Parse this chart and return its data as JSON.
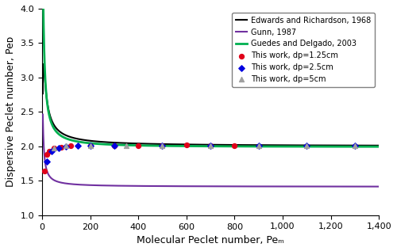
{
  "title": "",
  "xlabel": "Molecular Peclet number, Peₘ",
  "ylabel": "Dispersive Peclet number, Peᴅ",
  "xlim": [
    0,
    1400
  ],
  "ylim": [
    1.0,
    4.0
  ],
  "xticks": [
    0,
    200,
    400,
    600,
    800,
    1000,
    1200,
    1400
  ],
  "yticks": [
    1.0,
    1.5,
    2.0,
    2.5,
    3.0,
    3.5,
    4.0
  ],
  "legend_entries": [
    "This work, dp=1.25cm",
    "This work, dp=2.5cm",
    "This work, dp=5cm",
    "Edwards and Richardson, 1968",
    "Gunn, 1987",
    "Guedes and Delgado, 2003"
  ],
  "colors": {
    "work1": "#e0001a",
    "work2": "#0000e0",
    "work3": "#a0a0a0",
    "edwards": "#000000",
    "gunn": "#7030a0",
    "guedes": "#00b050"
  },
  "scatter_dp1": {
    "pe_m": [
      10,
      20,
      30,
      50,
      80,
      120,
      200,
      300,
      400,
      500,
      600,
      700,
      800
    ],
    "pe_d": [
      1.64,
      1.88,
      1.93,
      1.97,
      1.99,
      2.01,
      2.01,
      2.01,
      2.01,
      2.01,
      2.02,
      2.01,
      2.01
    ]
  },
  "scatter_dp2": {
    "pe_m": [
      20,
      40,
      70,
      100,
      150,
      200,
      300,
      500,
      700,
      900,
      1100,
      1300
    ],
    "pe_d": [
      1.78,
      1.93,
      1.98,
      2.0,
      2.01,
      2.01,
      2.01,
      2.01,
      2.01,
      2.01,
      2.01,
      2.01
    ]
  },
  "scatter_dp3": {
    "pe_m": [
      50,
      100,
      200,
      350,
      500,
      700,
      900,
      1100,
      1300
    ],
    "pe_d": [
      1.97,
      2.01,
      2.01,
      2.01,
      2.01,
      2.01,
      2.01,
      2.01,
      2.01
    ]
  },
  "figsize": [
    5.0,
    3.17
  ],
  "dpi": 100
}
